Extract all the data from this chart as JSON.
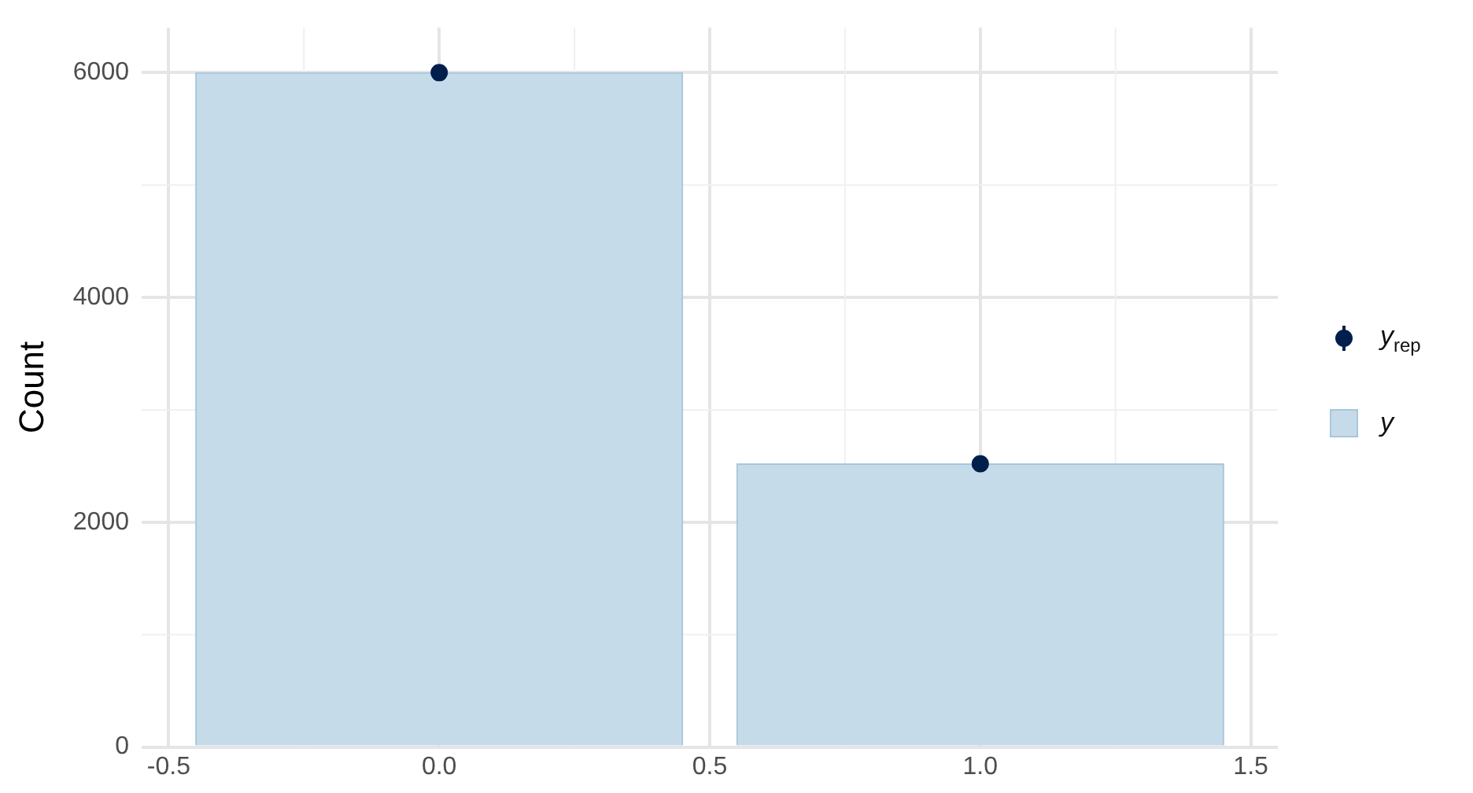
{
  "chart_data": {
    "type": "bar",
    "ylabel": "Count",
    "xlim": [
      -0.55,
      1.55
    ],
    "xticks": [
      {
        "value": -0.5,
        "label": "-0.5"
      },
      {
        "value": 0,
        "label": "0.0"
      },
      {
        "value": 0.5,
        "label": "0.5"
      },
      {
        "value": 1,
        "label": "1.0"
      },
      {
        "value": 1.5,
        "label": "1.5"
      }
    ],
    "ylim": [
      0,
      6400
    ],
    "yticks": [
      0,
      2000,
      4000,
      6000
    ],
    "x": [
      0,
      1
    ],
    "series": [
      {
        "name": "y$_{rep}$",
        "type": "scatter",
        "color": "#011f4b",
        "values": [
          6000,
          2520
        ]
      },
      {
        "name": "y",
        "color": "#c6dbe9",
        "values": [
          6000,
          2520
        ]
      }
    ],
    "grid": true,
    "legend": "right",
    "marker": "circle"
  }
}
